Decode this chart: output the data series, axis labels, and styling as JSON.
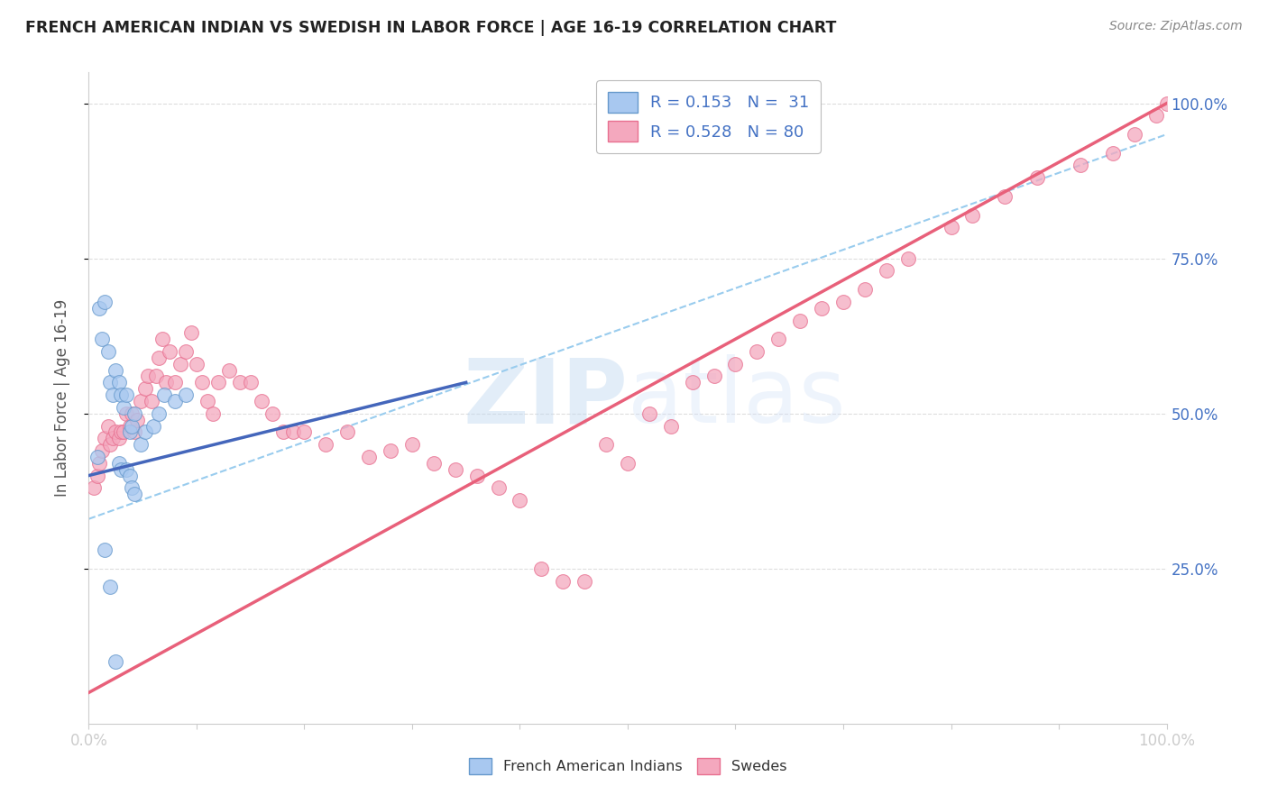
{
  "title": "FRENCH AMERICAN INDIAN VS SWEDISH IN LABOR FORCE | AGE 16-19 CORRELATION CHART",
  "source": "Source: ZipAtlas.com",
  "ylabel": "In Labor Force | Age 16-19",
  "yticks": [
    "25.0%",
    "50.0%",
    "75.0%",
    "100.0%"
  ],
  "ytick_vals": [
    0.25,
    0.5,
    0.75,
    1.0
  ],
  "xlim": [
    0.0,
    1.0
  ],
  "ylim": [
    0.0,
    1.05
  ],
  "legend_R1": "R = 0.153",
  "legend_N1": "N =  31",
  "legend_R2": "R = 0.528",
  "legend_N2": "N = 80",
  "color_blue_fill": "#A8C8F0",
  "color_pink_fill": "#F4A8BE",
  "color_blue_edge": "#6699CC",
  "color_pink_edge": "#E87090",
  "color_blue_line": "#4466BB",
  "color_pink_line": "#E8607A",
  "color_dashed": "#99CCEE",
  "watermark_zip": "ZIP",
  "watermark_atlas": "atlas",
  "blue_scatter_x": [
    0.008,
    0.01,
    0.012,
    0.015,
    0.018,
    0.02,
    0.022,
    0.025,
    0.028,
    0.03,
    0.032,
    0.035,
    0.038,
    0.04,
    0.042,
    0.048,
    0.052,
    0.06,
    0.065,
    0.07,
    0.08,
    0.09,
    0.028,
    0.03,
    0.035,
    0.038,
    0.04,
    0.042,
    0.015,
    0.02,
    0.025
  ],
  "blue_scatter_y": [
    0.43,
    0.67,
    0.62,
    0.68,
    0.6,
    0.55,
    0.53,
    0.57,
    0.55,
    0.53,
    0.51,
    0.53,
    0.47,
    0.48,
    0.5,
    0.45,
    0.47,
    0.48,
    0.5,
    0.53,
    0.52,
    0.53,
    0.42,
    0.41,
    0.41,
    0.4,
    0.38,
    0.37,
    0.28,
    0.22,
    0.1
  ],
  "pink_scatter_x": [
    0.005,
    0.008,
    0.01,
    0.012,
    0.015,
    0.018,
    0.02,
    0.022,
    0.025,
    0.028,
    0.03,
    0.032,
    0.035,
    0.038,
    0.04,
    0.042,
    0.045,
    0.048,
    0.052,
    0.055,
    0.058,
    0.062,
    0.065,
    0.068,
    0.072,
    0.075,
    0.08,
    0.085,
    0.09,
    0.095,
    0.1,
    0.105,
    0.11,
    0.115,
    0.12,
    0.13,
    0.14,
    0.15,
    0.16,
    0.17,
    0.18,
    0.19,
    0.2,
    0.22,
    0.24,
    0.26,
    0.28,
    0.3,
    0.32,
    0.34,
    0.36,
    0.38,
    0.4,
    0.42,
    0.44,
    0.46,
    0.48,
    0.5,
    0.52,
    0.54,
    0.56,
    0.58,
    0.6,
    0.62,
    0.64,
    0.66,
    0.68,
    0.7,
    0.72,
    0.74,
    0.76,
    0.8,
    0.82,
    0.85,
    0.88,
    0.92,
    0.95,
    0.97,
    0.99,
    1.0
  ],
  "pink_scatter_y": [
    0.38,
    0.4,
    0.42,
    0.44,
    0.46,
    0.48,
    0.45,
    0.46,
    0.47,
    0.46,
    0.47,
    0.47,
    0.5,
    0.48,
    0.5,
    0.47,
    0.49,
    0.52,
    0.54,
    0.56,
    0.52,
    0.56,
    0.59,
    0.62,
    0.55,
    0.6,
    0.55,
    0.58,
    0.6,
    0.63,
    0.58,
    0.55,
    0.52,
    0.5,
    0.55,
    0.57,
    0.55,
    0.55,
    0.52,
    0.5,
    0.47,
    0.47,
    0.47,
    0.45,
    0.47,
    0.43,
    0.44,
    0.45,
    0.42,
    0.41,
    0.4,
    0.38,
    0.36,
    0.25,
    0.23,
    0.23,
    0.45,
    0.42,
    0.5,
    0.48,
    0.55,
    0.56,
    0.58,
    0.6,
    0.62,
    0.65,
    0.67,
    0.68,
    0.7,
    0.73,
    0.75,
    0.8,
    0.82,
    0.85,
    0.88,
    0.9,
    0.92,
    0.95,
    0.98,
    1.0
  ],
  "blue_line_x0": 0.0,
  "blue_line_y0": 0.4,
  "blue_line_x1": 0.35,
  "blue_line_y1": 0.55,
  "pink_line_x0": 0.0,
  "pink_line_y0": 0.05,
  "pink_line_x1": 1.0,
  "pink_line_y1": 1.0,
  "dash_line_x0": 0.0,
  "dash_line_y0": 0.33,
  "dash_line_x1": 1.0,
  "dash_line_y1": 0.95
}
